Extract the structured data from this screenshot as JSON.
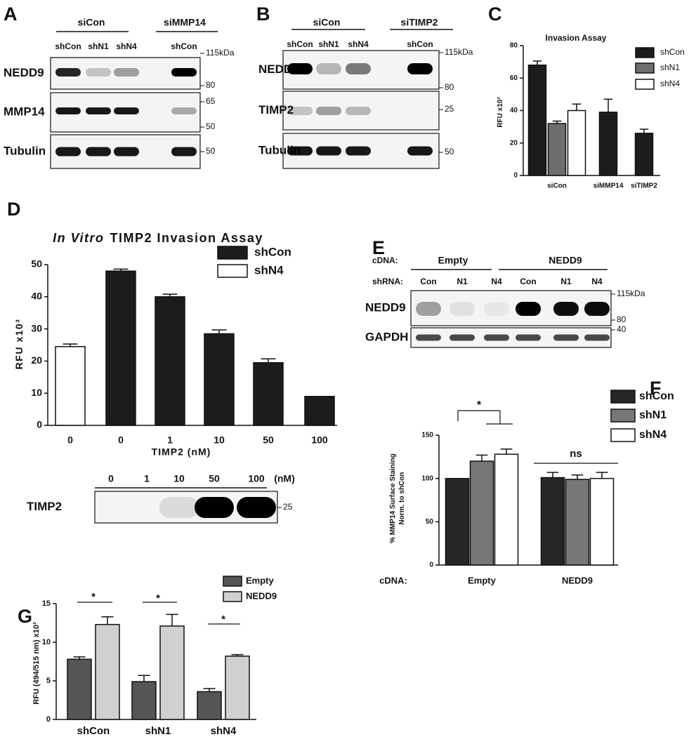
{
  "blots": {
    "A": {
      "letter": "A",
      "groups": [
        "siCon",
        "siMMP14"
      ],
      "lanes": [
        "shCon",
        "shN1",
        "shN4",
        "shCon"
      ],
      "rows": [
        "NEDD9",
        "MMP14",
        "Tubulin"
      ],
      "markers": [
        "115kDa",
        "80",
        "65",
        "50",
        "50"
      ]
    },
    "B": {
      "letter": "B",
      "groups": [
        "siCon",
        "siTIMP2"
      ],
      "lanes": [
        "shCon",
        "shN1",
        "shN4",
        "shCon"
      ],
      "rows": [
        "NEDD9",
        "TIMP2",
        "Tubulin"
      ],
      "markers": [
        "115kDa",
        "80",
        "25",
        "50"
      ]
    },
    "D": {
      "lanes": [
        "0",
        "1",
        "10",
        "50",
        "100"
      ],
      "unit": "(nM)",
      "rows": [
        "TIMP2"
      ],
      "markers": [
        "25"
      ]
    },
    "E": {
      "letter": "E",
      "row_labels": [
        "cDNA:",
        "shRNA:"
      ],
      "groups": [
        "Empty",
        "NEDD9"
      ],
      "lanes": [
        "Con",
        "N1",
        "N4",
        "Con",
        "N1",
        "N4"
      ],
      "rows": [
        "NEDD9",
        "GAPDH"
      ],
      "markers": [
        "115kDa",
        "80",
        "40"
      ]
    }
  },
  "chart_data": [
    {
      "panel": "C",
      "type": "bar",
      "title": "Invasion Assay",
      "ylabel": "RFU x10³",
      "categories": [
        "siCon",
        "siMMP14",
        "siTIMP2"
      ],
      "series": [
        {
          "name": "shCon",
          "color": "#1c1c1c",
          "values": [
            68,
            39,
            26
          ],
          "errors": [
            2.5,
            8,
            2.5
          ]
        },
        {
          "name": "shN1",
          "color": "#6e6e6e",
          "values": [
            32,
            null,
            null
          ],
          "errors": [
            1.5,
            null,
            null
          ]
        },
        {
          "name": "shN4",
          "color": "#ffffff",
          "values": [
            40,
            null,
            null
          ],
          "errors": [
            4,
            null,
            null
          ]
        }
      ],
      "ylim": [
        0,
        80
      ],
      "yticks": [
        0,
        20,
        40,
        60,
        80
      ]
    },
    {
      "panel": "D",
      "type": "bar",
      "title_italic": "In Vitro",
      "title": "TIMP2 Invasion Assay",
      "ylabel": "RFU x10³",
      "xlabel": "TIMP2 (nM)",
      "categories": [
        "0",
        "0",
        "1",
        "10",
        "50",
        "100"
      ],
      "series": [
        {
          "name": "shCon",
          "color": "#1c1c1c",
          "values": [
            null,
            48,
            40,
            28.5,
            19.5,
            9
          ],
          "errors": [
            null,
            0.6,
            0.8,
            1.2,
            1.2,
            null
          ]
        },
        {
          "name": "shN4",
          "color": "#ffffff",
          "values": [
            24.5,
            null,
            null,
            null,
            null,
            null
          ],
          "errors": [
            0.8,
            null,
            null,
            null,
            null,
            null
          ]
        }
      ],
      "ylim": [
        0,
        50
      ],
      "yticks": [
        0,
        10,
        20,
        30,
        40,
        50
      ]
    },
    {
      "panel": "F",
      "type": "bar",
      "ylabel": [
        "% MMP14 Surface Staining",
        "Norm. to shCon"
      ],
      "group_label": "cDNA:",
      "categories": [
        "Empty",
        "NEDD9"
      ],
      "series": [
        {
          "name": "shCon",
          "color": "#262626",
          "values": [
            100,
            101
          ],
          "errors": [
            null,
            6
          ]
        },
        {
          "name": "shN1",
          "color": "#777777",
          "values": [
            120,
            99
          ],
          "errors": [
            7,
            5
          ]
        },
        {
          "name": "shN4",
          "color": "#ffffff",
          "values": [
            128,
            100
          ],
          "errors": [
            6,
            7
          ]
        }
      ],
      "ylim": [
        0,
        150
      ],
      "yticks": [
        0,
        50,
        100,
        150
      ],
      "annotations": [
        "*",
        "ns"
      ]
    },
    {
      "panel": "G",
      "type": "bar",
      "ylabel": "RFU (494/515 nm) x10³",
      "categories": [
        "shCon",
        "shN1",
        "shN4"
      ],
      "series": [
        {
          "name": "Empty",
          "color": "#555555",
          "values": [
            7.8,
            4.9,
            3.6
          ],
          "errors": [
            0.3,
            0.8,
            0.4
          ]
        },
        {
          "name": "NEDD9",
          "color": "#d0d0d0",
          "values": [
            12.3,
            12.1,
            8.2
          ],
          "errors": [
            1,
            1.5,
            0.2
          ]
        }
      ],
      "ylim": [
        0,
        15
      ],
      "yticks": [
        0,
        5,
        10,
        15
      ],
      "annotations": [
        "*",
        "*",
        "*"
      ]
    }
  ]
}
